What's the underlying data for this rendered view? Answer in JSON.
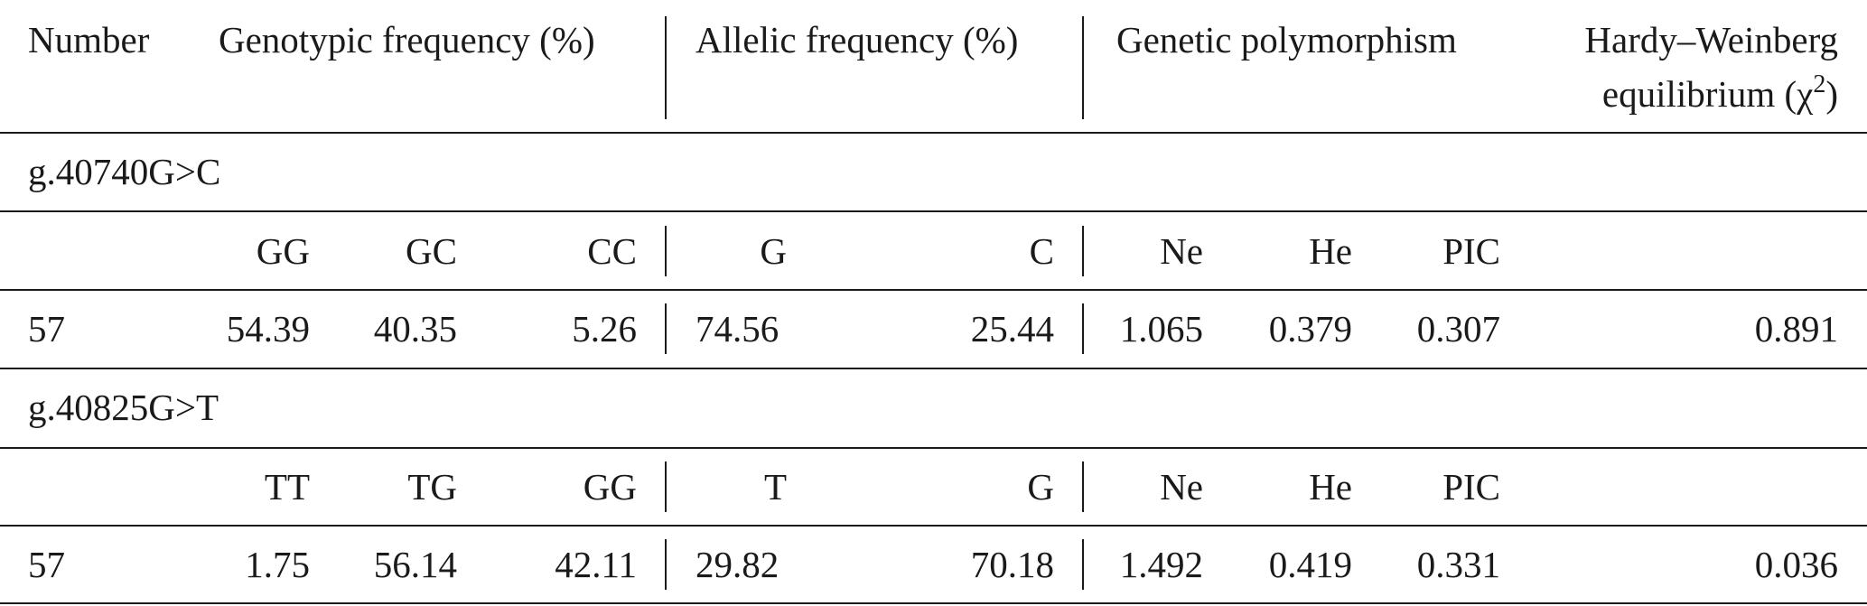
{
  "header": {
    "number": "Number",
    "genotypic": "Genotypic frequency (%)",
    "allelic": "Allelic frequency (%)",
    "polymorphism": "Genetic polymorphism",
    "hw_line1": "Hardy–Weinberg",
    "hw_line2_prefix": "equilibrium (χ",
    "hw_sup": "2",
    "hw_line2_suffix": ")"
  },
  "sections": [
    {
      "snp": "g.40740G>C",
      "subheaders": {
        "g1": "GG",
        "g2": "GC",
        "g3": "CC",
        "a1": "G",
        "a2": "C",
        "ne": "Ne",
        "he": "He",
        "pic": "PIC"
      },
      "row": {
        "number": "57",
        "g1": "54.39",
        "g2": "40.35",
        "g3": "5.26",
        "a1": "74.56",
        "a2": "25.44",
        "ne": "1.065",
        "he": "0.379",
        "pic": "0.307",
        "hw": "0.891"
      }
    },
    {
      "snp": "g.40825G>T",
      "subheaders": {
        "g1": "TT",
        "g2": "TG",
        "g3": "GG",
        "a1": "T",
        "a2": "G",
        "ne": "Ne",
        "he": "He",
        "pic": "PIC"
      },
      "row": {
        "number": "57",
        "g1": "1.75",
        "g2": "56.14",
        "g3": "42.11",
        "a1": "29.82",
        "a2": "70.18",
        "ne": "1.492",
        "he": "0.419",
        "pic": "0.331",
        "hw": "0.036"
      }
    }
  ]
}
